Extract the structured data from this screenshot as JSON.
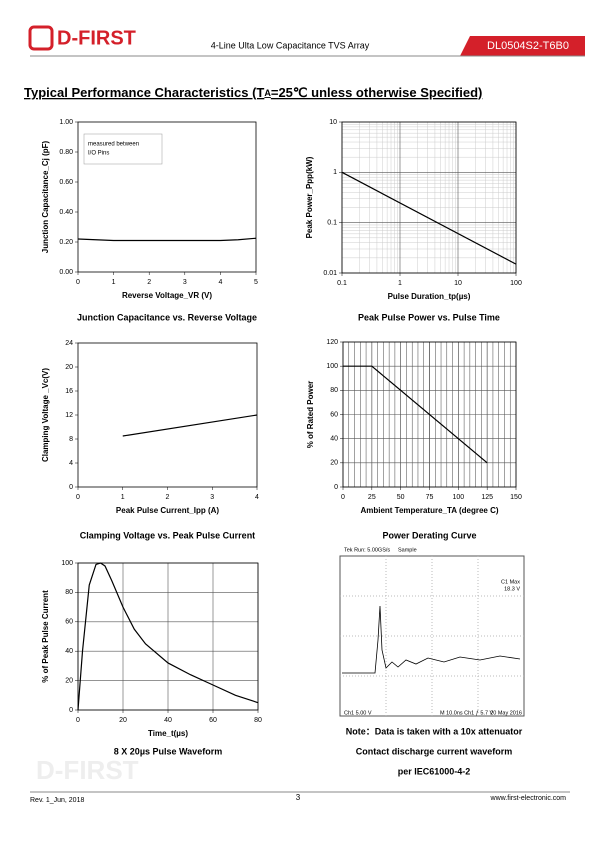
{
  "header": {
    "logo": "D-FIRST",
    "subtitle": "4-Line Ulta Low Capacitance TVS Array",
    "part": "DL0504S2-T6B0"
  },
  "heading_parts": [
    "Typical Performance Characteristics (T",
    "A",
    "=25℃ unless otherwise Specified)"
  ],
  "chart_data": [
    {
      "type": "line",
      "title": "Junction Capacitance vs. Reverse Voltage",
      "xlabel": "Reverse Voltage_VR (V)",
      "ylabel": "Junction Capacitance_Cj (pF)",
      "annotation": [
        "measured between",
        "I/O Pins"
      ],
      "x": [
        0,
        0.5,
        1,
        2,
        3,
        4,
        4.5,
        5
      ],
      "values": [
        0.22,
        0.215,
        0.21,
        0.21,
        0.21,
        0.21,
        0.215,
        0.225
      ],
      "color": "#000000",
      "xlim": [
        0,
        5
      ],
      "xticks": [
        0,
        1,
        2,
        3,
        4,
        5
      ],
      "ylim": [
        0,
        1
      ],
      "yticks": [
        {
          "value": 0,
          "label": "0.00"
        },
        {
          "value": 0.2,
          "label": "0.20"
        },
        {
          "value": 0.4,
          "label": "0.40"
        },
        {
          "value": 0.6,
          "label": "0.60"
        },
        {
          "value": 0.8,
          "label": "0.80"
        },
        {
          "value": 1,
          "label": "1.00"
        }
      ],
      "grid": false,
      "log": false
    },
    {
      "type": "line",
      "title": "Peak Pulse Power vs. Pulse Time",
      "xlabel": "Pulse Duration_tp(µs)",
      "ylabel": "Peak  Power_Ppp(kW)",
      "x": [
        0.1,
        100
      ],
      "values": [
        1,
        0.015
      ],
      "color": "#000000",
      "xlim": [
        0.1,
        100
      ],
      "xticks": [
        0.1,
        1,
        10,
        100
      ],
      "ylim": [
        0.01,
        10
      ],
      "yticks": [
        0.01,
        0.1,
        1,
        10
      ],
      "grid": true,
      "log": true
    },
    {
      "type": "line",
      "title": "Clamping Voltage vs. Peak Pulse Current",
      "xlabel": "Peak Pulse Current_Ipp (A)",
      "ylabel": "Clamping Voltage _Vc(V)",
      "x": [
        1,
        4
      ],
      "values": [
        8.5,
        12
      ],
      "color": "#000000",
      "xlim": [
        0,
        4
      ],
      "xticks": [
        0,
        1,
        2,
        3,
        4
      ],
      "ylim": [
        0,
        24
      ],
      "yticks": [
        0,
        4,
        8,
        12,
        16,
        20,
        24
      ],
      "grid": false,
      "log": false
    },
    {
      "type": "line",
      "title": "Power Derating Curve",
      "xlabel": "Ambient  Temperature_TA (degree C)",
      "ylabel": "% of Rated Power",
      "x": [
        0,
        25,
        125
      ],
      "values": [
        100,
        100,
        20
      ],
      "color": "#000000",
      "xlim": [
        0,
        150
      ],
      "xticks": [
        0,
        25,
        50,
        75,
        100,
        125,
        150
      ],
      "ylim": [
        0,
        120
      ],
      "yticks": [
        0,
        20,
        40,
        60,
        80,
        100,
        120
      ],
      "grid": true,
      "log": false
    },
    {
      "type": "line",
      "title": "8 X 20µs Pulse Waveform",
      "xlabel": "Time_t(µs)",
      "ylabel": "% of Peak Pulse Current",
      "x": [
        0,
        2,
        5,
        8,
        10,
        12,
        15,
        20,
        25,
        30,
        40,
        50,
        60,
        70,
        80
      ],
      "values": [
        0,
        40,
        85,
        99,
        100,
        98,
        88,
        70,
        55,
        45,
        32,
        24,
        17,
        10,
        5
      ],
      "color": "#000000",
      "xlim": [
        0,
        80
      ],
      "xticks": [
        0,
        20,
        40,
        60,
        80
      ],
      "ylim": [
        0,
        100
      ],
      "yticks": [
        0,
        20,
        40,
        60,
        80,
        100
      ],
      "grid": true,
      "log": false
    }
  ],
  "scope": {
    "run": "Tek Run: 5.00GS/s",
    "mode": "Sample",
    "max": [
      "C1 Max",
      "18.3 V"
    ],
    "ch": "Ch1  5.00 V",
    "time": "M 10.0ns  Ch1  ƒ  5.7 V",
    "date": "20 May 2016",
    "notes": [
      "Note：Data is taken with a 10x attenuator",
      "Contact discharge current waveform",
      "per IEC61000-4-2"
    ]
  },
  "footer": {
    "rev": "Rev. 1_Jun, 2018",
    "page": "3",
    "url": "www.first-electronic.com"
  }
}
